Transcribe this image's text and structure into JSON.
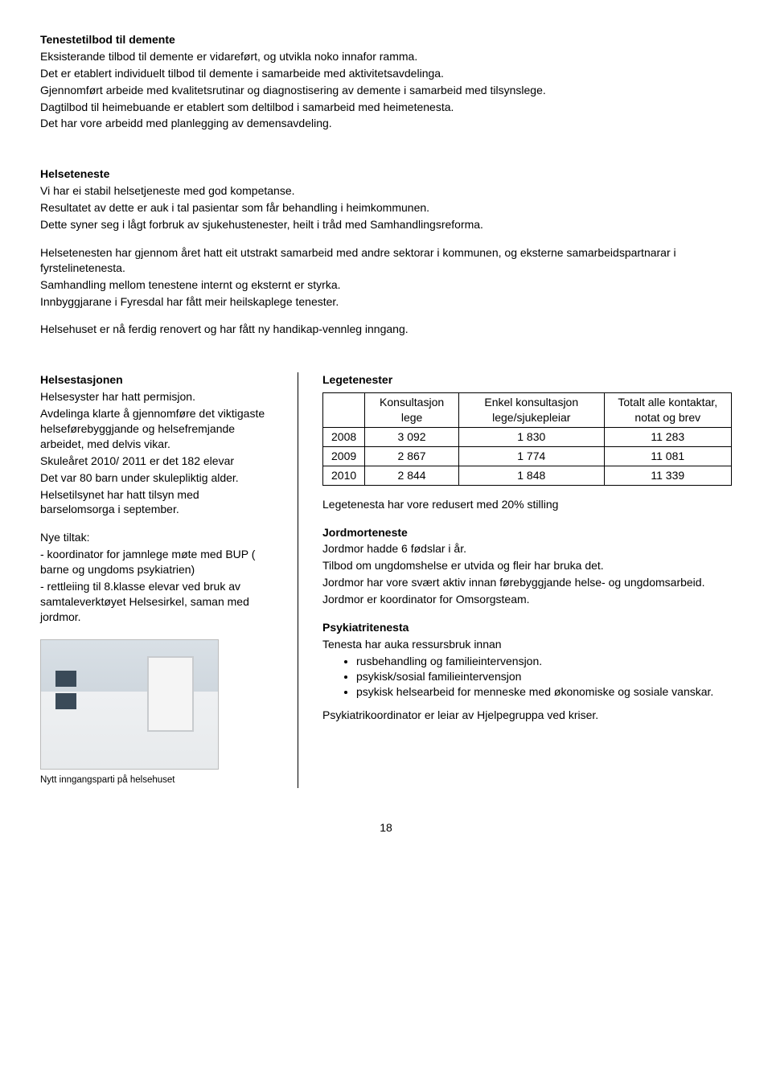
{
  "demente": {
    "heading": "Tenestetilbod til demente",
    "p1": "Eksisterande tilbod til demente er vidareført, og utvikla noko innafor ramma.",
    "p2": "Det er etablert individuelt tilbod til demente i samarbeide med aktivitetsavdelinga.",
    "p3": "Gjennomført arbeide med kvalitetsrutinar og diagnostisering av demente i samarbeid med tilsynslege.",
    "p4": "Dagtilbod til heimebuande er etablert som deltilbod i samarbeid med heimetenesta.",
    "p5": "Det har vore arbeidd med planlegging av demensavdeling."
  },
  "helseteneste": {
    "heading": "Helseteneste",
    "p1": "Vi har ei stabil helsetjeneste med god kompetanse.",
    "p2": "Resultatet av dette er auk i tal pasientar som får behandling i heimkommunen.",
    "p3": "Dette syner seg i lågt forbruk av sjukehustenester, heilt i tråd med Samhandlingsreforma.",
    "p4": "Helsetenesten har gjennom året hatt eit utstrakt samarbeid med andre sektorar i kommunen, og eksterne samarbeidspartnarar i fyrstelinetenesta.",
    "p5": "Samhandling mellom tenestene internt og eksternt er styrka.",
    "p6": "Innbyggjarane i Fyresdal har fått meir heilskaplege tenester.",
    "p7": "Helsehuset er nå ferdig renovert og har fått ny handikap-vennleg inngang."
  },
  "helsestasjon": {
    "heading": "Helsestasjonen",
    "p1": "Helsesyster har hatt permisjon.",
    "p2": "Avdelinga klarte å gjennomføre det viktigaste helseførebyggjande og helsefremjande arbeidet, med delvis vikar.",
    "p3": "Skuleåret 2010/ 2011 er det 182 elevar",
    "p4": "Det var 80 barn under skulepliktig alder.",
    "p5": "Helsetilsynet har hatt tilsyn med barselomsorga i september.",
    "nye_heading": "Nye tiltak:",
    "t1": "- koordinator for jamnlege møte med  BUP ( barne og ungdoms psykiatrien)",
    "t2": "- rettleiing til 8.klasse elevar ved bruk av samtaleverktøyet Helsesirkel, saman med jordmor.",
    "caption": "Nytt inngangsparti på helsehuset"
  },
  "lege": {
    "heading": "Legetenester",
    "col1": "Konsultasjon lege",
    "col2": "Enkel konsultasjon lege/sjukepleiar",
    "col3": "Totalt alle kontaktar, notat og brev",
    "rows": [
      {
        "y": "2008",
        "a": "3 092",
        "b": "1 830",
        "c": "11 283"
      },
      {
        "y": "2009",
        "a": "2 867",
        "b": "1 774",
        "c": "11 081"
      },
      {
        "y": "2010",
        "a": "2 844",
        "b": "1 848",
        "c": "11 339"
      }
    ],
    "note": "Legetenesta har vore redusert med 20% stilling"
  },
  "jordmor": {
    "heading": "Jordmorteneste",
    "p1": "Jordmor hadde 6 fødslar i år.",
    "p2": "Tilbod om ungdomshelse er utvida og fleir har bruka det.",
    "p3": "Jordmor har vore svært aktiv innan førebyggjande helse- og ungdomsarbeid.",
    "p4": "Jordmor er koordinator for Omsorgsteam."
  },
  "psyk": {
    "heading": "Psykiatritenesta",
    "intro": "Tenesta har auka ressursbruk innan",
    "b1": "rusbehandling og familieintervensjon.",
    "b2": "psykisk/sosial familieintervensjon",
    "b3": "psykisk helsearbeid for menneske med økonomiske og sosiale vanskar.",
    "p_last": "Psykiatrikoordinator er leiar av Hjelpegruppa ved kriser."
  },
  "pagenum": "18"
}
